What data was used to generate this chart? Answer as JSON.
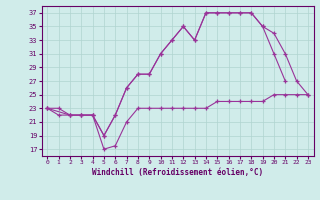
{
  "xlabel": "Windchill (Refroidissement éolien,°C)",
  "bg_color": "#d0ecea",
  "grid_color": "#b0d4d0",
  "line_color": "#993399",
  "xlim": [
    -0.5,
    23.5
  ],
  "ylim": [
    16,
    38
  ],
  "yticks": [
    17,
    19,
    21,
    23,
    25,
    27,
    29,
    31,
    33,
    35,
    37
  ],
  "xticks": [
    0,
    1,
    2,
    3,
    4,
    5,
    6,
    7,
    8,
    9,
    10,
    11,
    12,
    13,
    14,
    15,
    16,
    17,
    18,
    19,
    20,
    21,
    22,
    23
  ],
  "line1": {
    "x": [
      0,
      1,
      2,
      3,
      4,
      5,
      6,
      7,
      8,
      9,
      10,
      11,
      12,
      13,
      14,
      15,
      16,
      17,
      18,
      19,
      20,
      21,
      22,
      23
    ],
    "y": [
      23,
      22,
      22,
      22,
      22,
      17,
      17.5,
      21,
      23,
      23,
      23,
      23,
      23,
      23,
      23,
      24,
      24,
      24,
      24,
      24,
      25,
      25,
      25,
      25
    ]
  },
  "line2": {
    "x": [
      0,
      1,
      2,
      3,
      4,
      5,
      6,
      7,
      8,
      9,
      10,
      11,
      12,
      13,
      14,
      15,
      16,
      17,
      18,
      19,
      20,
      21,
      22,
      23
    ],
    "y": [
      23,
      23,
      22,
      22,
      22,
      19,
      22,
      26,
      28,
      28,
      31,
      33,
      35,
      33,
      37,
      37,
      37,
      37,
      37,
      35,
      34,
      31,
      27,
      25
    ]
  },
  "line3": {
    "x": [
      0,
      2,
      3,
      4,
      5,
      6,
      7,
      8,
      9,
      10,
      11,
      12,
      13,
      14,
      15,
      16,
      17,
      18,
      19,
      20,
      21
    ],
    "y": [
      23,
      22,
      22,
      22,
      19,
      22,
      26,
      28,
      28,
      31,
      33,
      35,
      33,
      37,
      37,
      37,
      37,
      37,
      35,
      31,
      27
    ]
  }
}
